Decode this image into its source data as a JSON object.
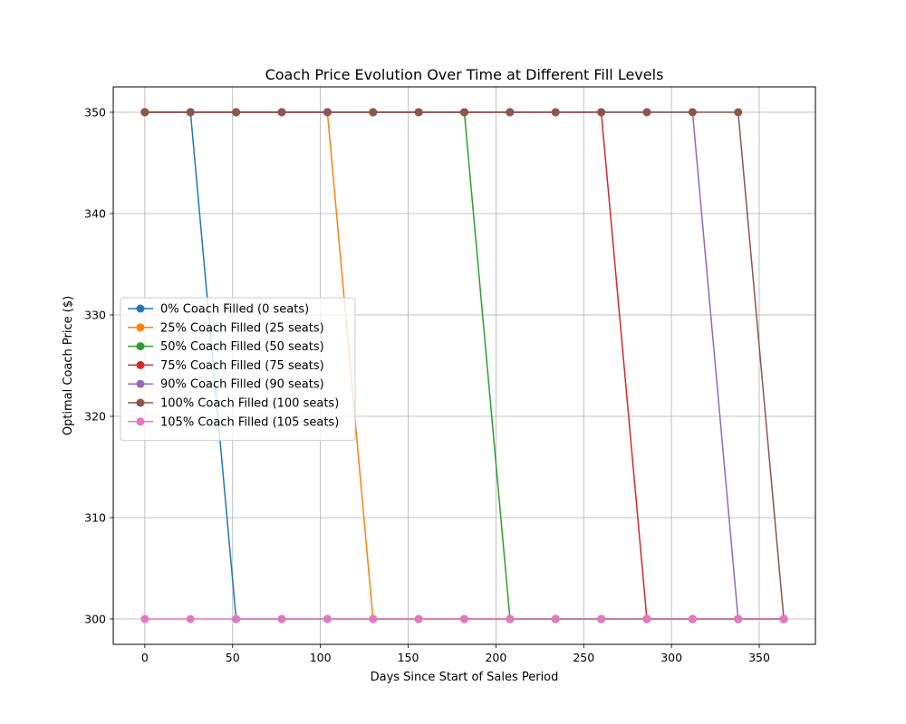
{
  "chart_data": {
    "type": "line",
    "title": "Coach Price Evolution Over Time at Different Fill Levels",
    "xlabel": "Days Since Start of Sales Period",
    "ylabel": "Optimal Coach Price ($)",
    "xlim": [
      -18,
      382
    ],
    "ylim": [
      297.5,
      352.5
    ],
    "xticks": [
      0,
      50,
      100,
      150,
      200,
      250,
      300,
      350
    ],
    "yticks": [
      300,
      310,
      320,
      330,
      340,
      350
    ],
    "grid": true,
    "legend_placement": "center-left",
    "x": [
      0,
      26,
      52,
      78,
      104,
      130,
      156,
      182,
      208,
      234,
      260,
      286,
      312,
      338,
      364
    ],
    "series": [
      {
        "name": "0% Coach Filled (0 seats)",
        "color": "#1f77b4",
        "values": [
          350,
          350,
          300,
          300,
          300,
          300,
          300,
          300,
          300,
          300,
          300,
          300,
          300,
          300,
          300
        ]
      },
      {
        "name": "25% Coach Filled (25 seats)",
        "color": "#ff7f0e",
        "values": [
          350,
          350,
          350,
          350,
          350,
          300,
          300,
          300,
          300,
          300,
          300,
          300,
          300,
          300,
          300
        ]
      },
      {
        "name": "50% Coach Filled (50 seats)",
        "color": "#2ca02c",
        "values": [
          350,
          350,
          350,
          350,
          350,
          350,
          350,
          350,
          300,
          300,
          300,
          300,
          300,
          300,
          300
        ]
      },
      {
        "name": "75% Coach Filled (75 seats)",
        "color": "#d62728",
        "values": [
          350,
          350,
          350,
          350,
          350,
          350,
          350,
          350,
          350,
          350,
          350,
          300,
          300,
          300,
          300
        ]
      },
      {
        "name": "90% Coach Filled (90 seats)",
        "color": "#9467bd",
        "values": [
          350,
          350,
          350,
          350,
          350,
          350,
          350,
          350,
          350,
          350,
          350,
          350,
          350,
          300,
          300
        ]
      },
      {
        "name": "100% Coach Filled (100 seats)",
        "color": "#8c564b",
        "values": [
          350,
          350,
          350,
          350,
          350,
          350,
          350,
          350,
          350,
          350,
          350,
          350,
          350,
          350,
          300
        ]
      },
      {
        "name": "105% Coach Filled (105 seats)",
        "color": "#e377c2",
        "values": [
          300,
          300,
          300,
          300,
          300,
          300,
          300,
          300,
          300,
          300,
          300,
          300,
          300,
          300,
          300
        ]
      }
    ]
  }
}
